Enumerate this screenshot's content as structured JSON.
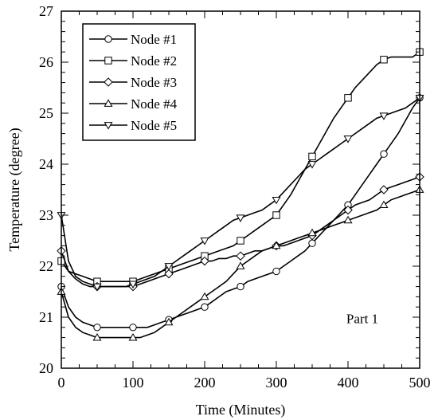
{
  "chart_data": {
    "type": "line",
    "title": "",
    "xlabel": "Time (Minutes)",
    "ylabel": "Temperature (degree)",
    "xlim": [
      0,
      500
    ],
    "ylim": [
      20,
      27
    ],
    "xticks": [
      "0",
      "100",
      "200",
      "300",
      "400",
      "500"
    ],
    "yticks": [
      "20",
      "21",
      "22",
      "23",
      "24",
      "25",
      "26",
      "27"
    ],
    "grid": false,
    "legend_position": "top-left",
    "annotation": "Part 1",
    "line_color": "#000000",
    "series": [
      {
        "name": "Node #1",
        "marker": "circle",
        "x": [
          0,
          10,
          20,
          30,
          40,
          50,
          60,
          70,
          80,
          90,
          100,
          110,
          120,
          130,
          140,
          150,
          160,
          170,
          180,
          190,
          200,
          210,
          220,
          230,
          240,
          250,
          260,
          270,
          280,
          290,
          300,
          310,
          320,
          330,
          340,
          350,
          360,
          370,
          380,
          390,
          400,
          410,
          420,
          430,
          440,
          450,
          460,
          470,
          480,
          490,
          500
        ],
        "y": [
          21.6,
          21.2,
          21.0,
          20.9,
          20.85,
          20.8,
          20.8,
          20.8,
          20.8,
          20.8,
          20.8,
          20.8,
          20.8,
          20.85,
          20.9,
          20.95,
          21.0,
          21.05,
          21.1,
          21.15,
          21.2,
          21.3,
          21.4,
          21.5,
          21.55,
          21.6,
          21.7,
          21.75,
          21.8,
          21.85,
          21.9,
          22.0,
          22.1,
          22.2,
          22.3,
          22.45,
          22.6,
          22.75,
          22.9,
          23.05,
          23.2,
          23.4,
          23.6,
          23.8,
          24.0,
          24.2,
          24.4,
          24.6,
          24.85,
          25.1,
          25.3
        ]
      },
      {
        "name": "Node #2",
        "marker": "square",
        "x": [
          0,
          10,
          20,
          30,
          40,
          50,
          60,
          70,
          80,
          90,
          100,
          110,
          120,
          130,
          140,
          150,
          160,
          170,
          180,
          190,
          200,
          210,
          220,
          230,
          240,
          250,
          260,
          270,
          280,
          290,
          300,
          310,
          320,
          330,
          340,
          350,
          360,
          370,
          380,
          390,
          400,
          410,
          420,
          430,
          440,
          450,
          460,
          470,
          480,
          490,
          500
        ],
        "y": [
          22.1,
          21.9,
          21.85,
          21.8,
          21.75,
          21.7,
          21.7,
          21.7,
          21.7,
          21.7,
          21.7,
          21.75,
          21.8,
          21.85,
          21.9,
          21.95,
          22.0,
          22.05,
          22.1,
          22.15,
          22.2,
          22.25,
          22.3,
          22.35,
          22.4,
          22.5,
          22.6,
          22.7,
          22.8,
          22.9,
          23.0,
          23.2,
          23.4,
          23.65,
          23.9,
          24.15,
          24.4,
          24.65,
          24.9,
          25.1,
          25.3,
          25.5,
          25.65,
          25.8,
          25.95,
          26.05,
          26.1,
          26.1,
          26.1,
          26.1,
          26.2
        ]
      },
      {
        "name": "Node #3",
        "marker": "diamond",
        "x": [
          0,
          10,
          20,
          30,
          40,
          50,
          60,
          70,
          80,
          90,
          100,
          110,
          120,
          130,
          140,
          150,
          160,
          170,
          180,
          190,
          200,
          210,
          220,
          230,
          240,
          250,
          260,
          270,
          280,
          290,
          300,
          310,
          320,
          330,
          340,
          350,
          360,
          370,
          380,
          390,
          400,
          410,
          420,
          430,
          440,
          450,
          460,
          470,
          480,
          490,
          500
        ],
        "y": [
          22.3,
          21.9,
          21.75,
          21.65,
          21.6,
          21.6,
          21.6,
          21.6,
          21.6,
          21.6,
          21.6,
          21.65,
          21.7,
          21.75,
          21.8,
          21.85,
          21.9,
          21.95,
          22.0,
          22.05,
          22.1,
          22.1,
          22.15,
          22.15,
          22.2,
          22.2,
          22.25,
          22.3,
          22.3,
          22.35,
          22.4,
          22.4,
          22.45,
          22.5,
          22.55,
          22.6,
          22.7,
          22.8,
          22.9,
          23.0,
          23.1,
          23.2,
          23.25,
          23.3,
          23.4,
          23.5,
          23.55,
          23.6,
          23.65,
          23.7,
          23.75
        ]
      },
      {
        "name": "Node #4",
        "marker": "triangle-up",
        "x": [
          0,
          10,
          20,
          30,
          40,
          50,
          60,
          70,
          80,
          90,
          100,
          110,
          120,
          130,
          140,
          150,
          160,
          170,
          180,
          190,
          200,
          210,
          220,
          230,
          240,
          250,
          260,
          270,
          280,
          290,
          300,
          310,
          320,
          330,
          340,
          350,
          360,
          370,
          380,
          390,
          400,
          410,
          420,
          430,
          440,
          450,
          460,
          470,
          480,
          490,
          500
        ],
        "y": [
          21.5,
          21.0,
          20.8,
          20.7,
          20.65,
          20.6,
          20.6,
          20.6,
          20.6,
          20.6,
          20.6,
          20.6,
          20.65,
          20.7,
          20.8,
          20.9,
          21.0,
          21.1,
          21.2,
          21.3,
          21.4,
          21.5,
          21.6,
          21.7,
          21.85,
          22.0,
          22.1,
          22.2,
          22.3,
          22.35,
          22.4,
          22.45,
          22.5,
          22.55,
          22.6,
          22.65,
          22.7,
          22.75,
          22.8,
          22.85,
          22.9,
          22.95,
          23.0,
          23.05,
          23.1,
          23.2,
          23.3,
          23.35,
          23.4,
          23.45,
          23.5
        ]
      },
      {
        "name": "Node #5",
        "marker": "triangle-down",
        "x": [
          0,
          10,
          20,
          30,
          40,
          50,
          60,
          70,
          80,
          90,
          100,
          110,
          120,
          130,
          140,
          150,
          160,
          170,
          180,
          190,
          200,
          210,
          220,
          230,
          240,
          250,
          260,
          270,
          280,
          290,
          300,
          310,
          320,
          330,
          340,
          350,
          360,
          370,
          380,
          390,
          400,
          410,
          420,
          430,
          440,
          450,
          460,
          470,
          480,
          490,
          500
        ],
        "y": [
          23.0,
          22.1,
          21.8,
          21.7,
          21.65,
          21.6,
          21.6,
          21.6,
          21.6,
          21.6,
          21.65,
          21.7,
          21.75,
          21.8,
          21.9,
          22.0,
          22.1,
          22.2,
          22.3,
          22.4,
          22.5,
          22.6,
          22.7,
          22.8,
          22.9,
          22.95,
          23.0,
          23.05,
          23.1,
          23.2,
          23.3,
          23.45,
          23.6,
          23.75,
          23.9,
          24.0,
          24.1,
          24.2,
          24.3,
          24.4,
          24.5,
          24.6,
          24.7,
          24.8,
          24.9,
          24.95,
          25.0,
          25.05,
          25.1,
          25.2,
          25.3
        ]
      }
    ]
  }
}
